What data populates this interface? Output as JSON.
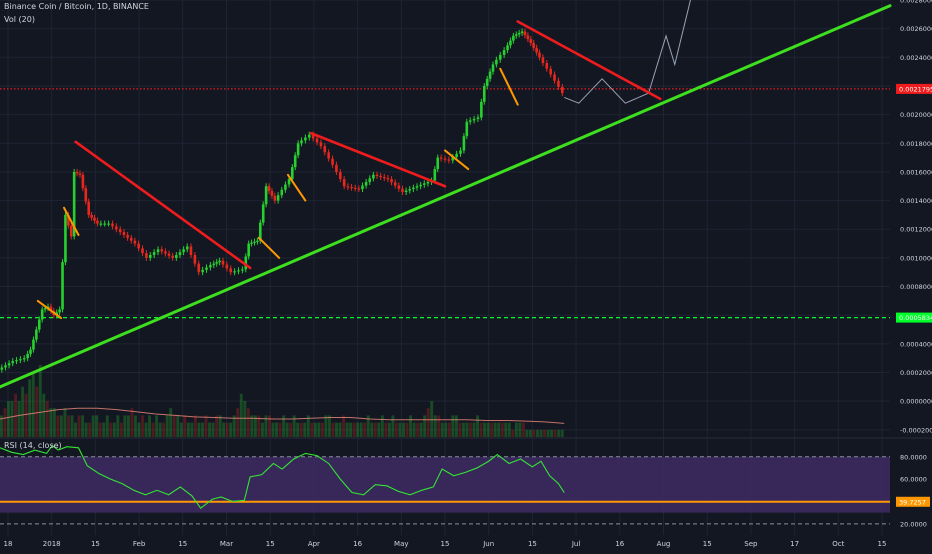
{
  "header": {
    "symbol_line": "Binance Coin / Bitcoin, 1D, BINANCE",
    "volume_label": "Vol (20)",
    "rsi_label": "RSI (14, close)"
  },
  "colors": {
    "background": "#131722",
    "grid": "#1f2433",
    "bull": "#26d12f",
    "bear": "#e8271d",
    "trendline": "#3ddf1e",
    "downtrend": "#ee1c1c",
    "flag": "#ff9800",
    "support": "#00ff2a",
    "resistance": "#ee1c1c",
    "rsi_line": "#33e533",
    "rsi_band": "#3f2a63",
    "rsi_level": "#ff9800",
    "volume_ma": "#f08b7a",
    "axis_text": "#d1d4dc"
  },
  "chart_data": {
    "type": "candlestick",
    "title": "Binance Coin / Bitcoin, 1D, BINANCE",
    "x_ticks": [
      "18",
      "2018",
      "15",
      "Feb",
      "15",
      "Mar",
      "15",
      "Apr",
      "16",
      "May",
      "15",
      "Jun",
      "15",
      "Jul",
      "16",
      "Aug",
      "15",
      "Sep",
      "17",
      "Oct",
      "15"
    ],
    "x_range": [
      "2017-12-17",
      "2018-10-19"
    ],
    "price_axis": {
      "ticks": [
        "0.0028000",
        "0.0026000",
        "0.0024000",
        "0.0022000",
        "0.0020000",
        "0.0018000",
        "0.0016000",
        "0.0014000",
        "0.0012000",
        "0.0010000",
        "0.0008000",
        "0.0006000",
        "0.0004000",
        "0.0002000",
        "0.0000000",
        "-0.0002000"
      ],
      "ylim": [
        -0.00025,
        0.0028
      ]
    },
    "horizontal_levels": [
      {
        "label": "0.0021795",
        "value": 0.0021795,
        "style": "dotted",
        "color": "resistance"
      },
      {
        "label": "0.0005834",
        "value": 0.0005834,
        "style": "dashed",
        "color": "support"
      }
    ],
    "price_series": [
      {
        "date": "2017-12-17",
        "value": 0.00022
      },
      {
        "date": "2017-12-22",
        "value": 0.00028
      },
      {
        "date": "2017-12-26",
        "value": 0.0003
      },
      {
        "date": "2017-12-28",
        "value": 0.00036
      },
      {
        "date": "2017-12-30",
        "value": 0.0005
      },
      {
        "date": "2018-01-01",
        "value": 0.00064
      },
      {
        "date": "2018-01-03",
        "value": 0.00066
      },
      {
        "date": "2018-01-05",
        "value": 0.0006
      },
      {
        "date": "2018-01-07",
        "value": 0.00064
      },
      {
        "date": "2018-01-09",
        "value": 0.0013
      },
      {
        "date": "2018-01-11",
        "value": 0.00115
      },
      {
        "date": "2018-01-12",
        "value": 0.0016
      },
      {
        "date": "2018-01-14",
        "value": 0.00158
      },
      {
        "date": "2018-01-17",
        "value": 0.0013
      },
      {
        "date": "2018-01-20",
        "value": 0.00124
      },
      {
        "date": "2018-01-24",
        "value": 0.00124
      },
      {
        "date": "2018-01-28",
        "value": 0.00118
      },
      {
        "date": "2018-02-02",
        "value": 0.0011
      },
      {
        "date": "2018-02-06",
        "value": 0.001
      },
      {
        "date": "2018-02-10",
        "value": 0.00106
      },
      {
        "date": "2018-02-15",
        "value": 0.001
      },
      {
        "date": "2018-02-20",
        "value": 0.00108
      },
      {
        "date": "2018-02-24",
        "value": 0.0009
      },
      {
        "date": "2018-02-28",
        "value": 0.00095
      },
      {
        "date": "2018-03-03",
        "value": 0.00098
      },
      {
        "date": "2018-03-07",
        "value": 0.0009
      },
      {
        "date": "2018-03-11",
        "value": 0.00092
      },
      {
        "date": "2018-03-13",
        "value": 0.0011
      },
      {
        "date": "2018-03-16",
        "value": 0.00112
      },
      {
        "date": "2018-03-19",
        "value": 0.0015
      },
      {
        "date": "2018-03-22",
        "value": 0.0014
      },
      {
        "date": "2018-03-27",
        "value": 0.00155
      },
      {
        "date": "2018-03-30",
        "value": 0.0018
      },
      {
        "date": "2018-04-03",
        "value": 0.00186
      },
      {
        "date": "2018-04-07",
        "value": 0.00178
      },
      {
        "date": "2018-04-11",
        "value": 0.00165
      },
      {
        "date": "2018-04-15",
        "value": 0.0015
      },
      {
        "date": "2018-04-20",
        "value": 0.00148
      },
      {
        "date": "2018-04-25",
        "value": 0.00158
      },
      {
        "date": "2018-04-30",
        "value": 0.00155
      },
      {
        "date": "2018-05-05",
        "value": 0.00146
      },
      {
        "date": "2018-05-10",
        "value": 0.0015
      },
      {
        "date": "2018-05-15",
        "value": 0.00154
      },
      {
        "date": "2018-05-17",
        "value": 0.0017
      },
      {
        "date": "2018-05-21",
        "value": 0.00168
      },
      {
        "date": "2018-05-25",
        "value": 0.00175
      },
      {
        "date": "2018-05-27",
        "value": 0.00195
      },
      {
        "date": "2018-05-31",
        "value": 0.00198
      },
      {
        "date": "2018-06-02",
        "value": 0.0022
      },
      {
        "date": "2018-06-05",
        "value": 0.00235
      },
      {
        "date": "2018-06-09",
        "value": 0.00245
      },
      {
        "date": "2018-06-12",
        "value": 0.00255
      },
      {
        "date": "2018-06-15",
        "value": 0.00258
      },
      {
        "date": "2018-06-18",
        "value": 0.0025
      },
      {
        "date": "2018-06-21",
        "value": 0.0024
      },
      {
        "date": "2018-06-25",
        "value": 0.00228
      },
      {
        "date": "2018-06-29",
        "value": 0.00215
      }
    ],
    "projection_path": [
      {
        "date": "2018-06-29",
        "value": 0.00212
      },
      {
        "date": "2018-07-04",
        "value": 0.00208
      },
      {
        "date": "2018-07-12",
        "value": 0.00225
      },
      {
        "date": "2018-07-20",
        "value": 0.00208
      },
      {
        "date": "2018-07-28",
        "value": 0.00215
      },
      {
        "date": "2018-08-03",
        "value": 0.00255
      },
      {
        "date": "2018-08-06",
        "value": 0.00235
      },
      {
        "date": "2018-08-12",
        "value": 0.00285
      }
    ],
    "drawings": [
      {
        "kind": "main-uptrend",
        "from": {
          "date": "2017-12-17",
          "value": 0.0001
        },
        "to": {
          "date": "2018-10-19",
          "value": 0.00276
        }
      },
      {
        "kind": "downtrend",
        "from": {
          "date": "2018-01-12",
          "value": 0.00181
        },
        "to": {
          "date": "2018-03-13",
          "value": 0.00093
        }
      },
      {
        "kind": "downtrend",
        "from": {
          "date": "2018-04-03",
          "value": 0.00187
        },
        "to": {
          "date": "2018-05-19",
          "value": 0.0015
        }
      },
      {
        "kind": "downtrend",
        "from": {
          "date": "2018-06-13",
          "value": 0.00265
        },
        "to": {
          "date": "2018-08-01",
          "value": 0.00211
        }
      },
      {
        "kind": "flag",
        "from": {
          "date": "2017-12-30",
          "value": 0.0007
        },
        "to": {
          "date": "2018-01-07",
          "value": 0.00058
        }
      },
      {
        "kind": "flag",
        "from": {
          "date": "2018-01-08",
          "value": 0.00135
        },
        "to": {
          "date": "2018-01-13",
          "value": 0.00116
        }
      },
      {
        "kind": "flag",
        "from": {
          "date": "2018-03-16",
          "value": 0.00114
        },
        "to": {
          "date": "2018-03-23",
          "value": 0.001
        }
      },
      {
        "kind": "flag",
        "from": {
          "date": "2018-03-26",
          "value": 0.00158
        },
        "to": {
          "date": "2018-04-01",
          "value": 0.0014
        }
      },
      {
        "kind": "flag",
        "from": {
          "date": "2018-05-19",
          "value": 0.00175
        },
        "to": {
          "date": "2018-05-27",
          "value": 0.00162
        }
      },
      {
        "kind": "flag",
        "from": {
          "date": "2018-06-07",
          "value": 0.00232
        },
        "to": {
          "date": "2018-06-13",
          "value": 0.00207
        }
      }
    ],
    "volume": {
      "label": "Vol (20)",
      "values": [
        3,
        4,
        5,
        5,
        6,
        5,
        7,
        6,
        8,
        9,
        7,
        10,
        6,
        5,
        4,
        4,
        3,
        3,
        4,
        3,
        3,
        2,
        3,
        3,
        2,
        2,
        3,
        3,
        2,
        2,
        3,
        2,
        2,
        3,
        2,
        3,
        3,
        4,
        3,
        2,
        3,
        2,
        3,
        2,
        3,
        2,
        2,
        3,
        4,
        3,
        3,
        2,
        3,
        2,
        2,
        3,
        2,
        2,
        3,
        2,
        2,
        3,
        3,
        2,
        2,
        2,
        3,
        4,
        6,
        5,
        4,
        3,
        3,
        3,
        2,
        3,
        3,
        2,
        2,
        2,
        3,
        2,
        2,
        3,
        2,
        2,
        2,
        3,
        2,
        2,
        2,
        2,
        3,
        3,
        2,
        2,
        2,
        3,
        2,
        2,
        2,
        2,
        2,
        2,
        3,
        2,
        2,
        2,
        3,
        2,
        2,
        3,
        2,
        2,
        2,
        2,
        3,
        2,
        2,
        2,
        3,
        4,
        5,
        3,
        3,
        2,
        2,
        2,
        3,
        3,
        2,
        2,
        2,
        2,
        2,
        3,
        2,
        2,
        2,
        2,
        2,
        2,
        2,
        2,
        2,
        1,
        2,
        2,
        2,
        1,
        1,
        1,
        1,
        1,
        1,
        1,
        1,
        1,
        1,
        1
      ],
      "ma": [
        2.5,
        3,
        3.4,
        3.8,
        4,
        4,
        3.8,
        3.5,
        3.2,
        3,
        2.8,
        2.7,
        2.6,
        2.6,
        2.5,
        2.5,
        2.6,
        2.7,
        2.7,
        2.5,
        2.4,
        2.4,
        2.4,
        2.4,
        2.4,
        2.3,
        2.3,
        2.2,
        2.1,
        1.9
      ]
    },
    "rsi": {
      "label": "RSI (14, close)",
      "axis_ticks": [
        "80.0000",
        "60.0000",
        "40.0000",
        "20.0000"
      ],
      "ylim": [
        10,
        95
      ],
      "band": [
        30,
        80
      ],
      "level": {
        "label": "39.7257",
        "value": 39.7257
      },
      "series": [
        {
          "date": "2017-12-17",
          "value": 88
        },
        {
          "date": "2017-12-21",
          "value": 84
        },
        {
          "date": "2017-12-25",
          "value": 82
        },
        {
          "date": "2017-12-29",
          "value": 86
        },
        {
          "date": "2018-01-02",
          "value": 83
        },
        {
          "date": "2018-01-04",
          "value": 90
        },
        {
          "date": "2018-01-06",
          "value": 86
        },
        {
          "date": "2018-01-09",
          "value": 89
        },
        {
          "date": "2018-01-13",
          "value": 88
        },
        {
          "date": "2018-01-16",
          "value": 72
        },
        {
          "date": "2018-01-20",
          "value": 65
        },
        {
          "date": "2018-01-24",
          "value": 60
        },
        {
          "date": "2018-01-28",
          "value": 56
        },
        {
          "date": "2018-02-01",
          "value": 50
        },
        {
          "date": "2018-02-05",
          "value": 46
        },
        {
          "date": "2018-02-09",
          "value": 50
        },
        {
          "date": "2018-02-13",
          "value": 46
        },
        {
          "date": "2018-02-17",
          "value": 53
        },
        {
          "date": "2018-02-21",
          "value": 45
        },
        {
          "date": "2018-02-24",
          "value": 34
        },
        {
          "date": "2018-02-28",
          "value": 42
        },
        {
          "date": "2018-03-03",
          "value": 44
        },
        {
          "date": "2018-03-07",
          "value": 40
        },
        {
          "date": "2018-03-11",
          "value": 41
        },
        {
          "date": "2018-03-13",
          "value": 62
        },
        {
          "date": "2018-03-17",
          "value": 64
        },
        {
          "date": "2018-03-21",
          "value": 74
        },
        {
          "date": "2018-03-24",
          "value": 69
        },
        {
          "date": "2018-03-28",
          "value": 78
        },
        {
          "date": "2018-04-01",
          "value": 83
        },
        {
          "date": "2018-04-05",
          "value": 81
        },
        {
          "date": "2018-04-09",
          "value": 74
        },
        {
          "date": "2018-04-13",
          "value": 60
        },
        {
          "date": "2018-04-17",
          "value": 48
        },
        {
          "date": "2018-04-21",
          "value": 46
        },
        {
          "date": "2018-04-25",
          "value": 55
        },
        {
          "date": "2018-04-29",
          "value": 54
        },
        {
          "date": "2018-05-03",
          "value": 49
        },
        {
          "date": "2018-05-07",
          "value": 46
        },
        {
          "date": "2018-05-11",
          "value": 50
        },
        {
          "date": "2018-05-15",
          "value": 53
        },
        {
          "date": "2018-05-18",
          "value": 69
        },
        {
          "date": "2018-05-22",
          "value": 63
        },
        {
          "date": "2018-05-26",
          "value": 66
        },
        {
          "date": "2018-05-30",
          "value": 70
        },
        {
          "date": "2018-06-03",
          "value": 76
        },
        {
          "date": "2018-06-06",
          "value": 82
        },
        {
          "date": "2018-06-10",
          "value": 74
        },
        {
          "date": "2018-06-14",
          "value": 78
        },
        {
          "date": "2018-06-18",
          "value": 71
        },
        {
          "date": "2018-06-21",
          "value": 76
        },
        {
          "date": "2018-06-24",
          "value": 63
        },
        {
          "date": "2018-06-27",
          "value": 56
        },
        {
          "date": "2018-06-29",
          "value": 48
        }
      ]
    }
  }
}
